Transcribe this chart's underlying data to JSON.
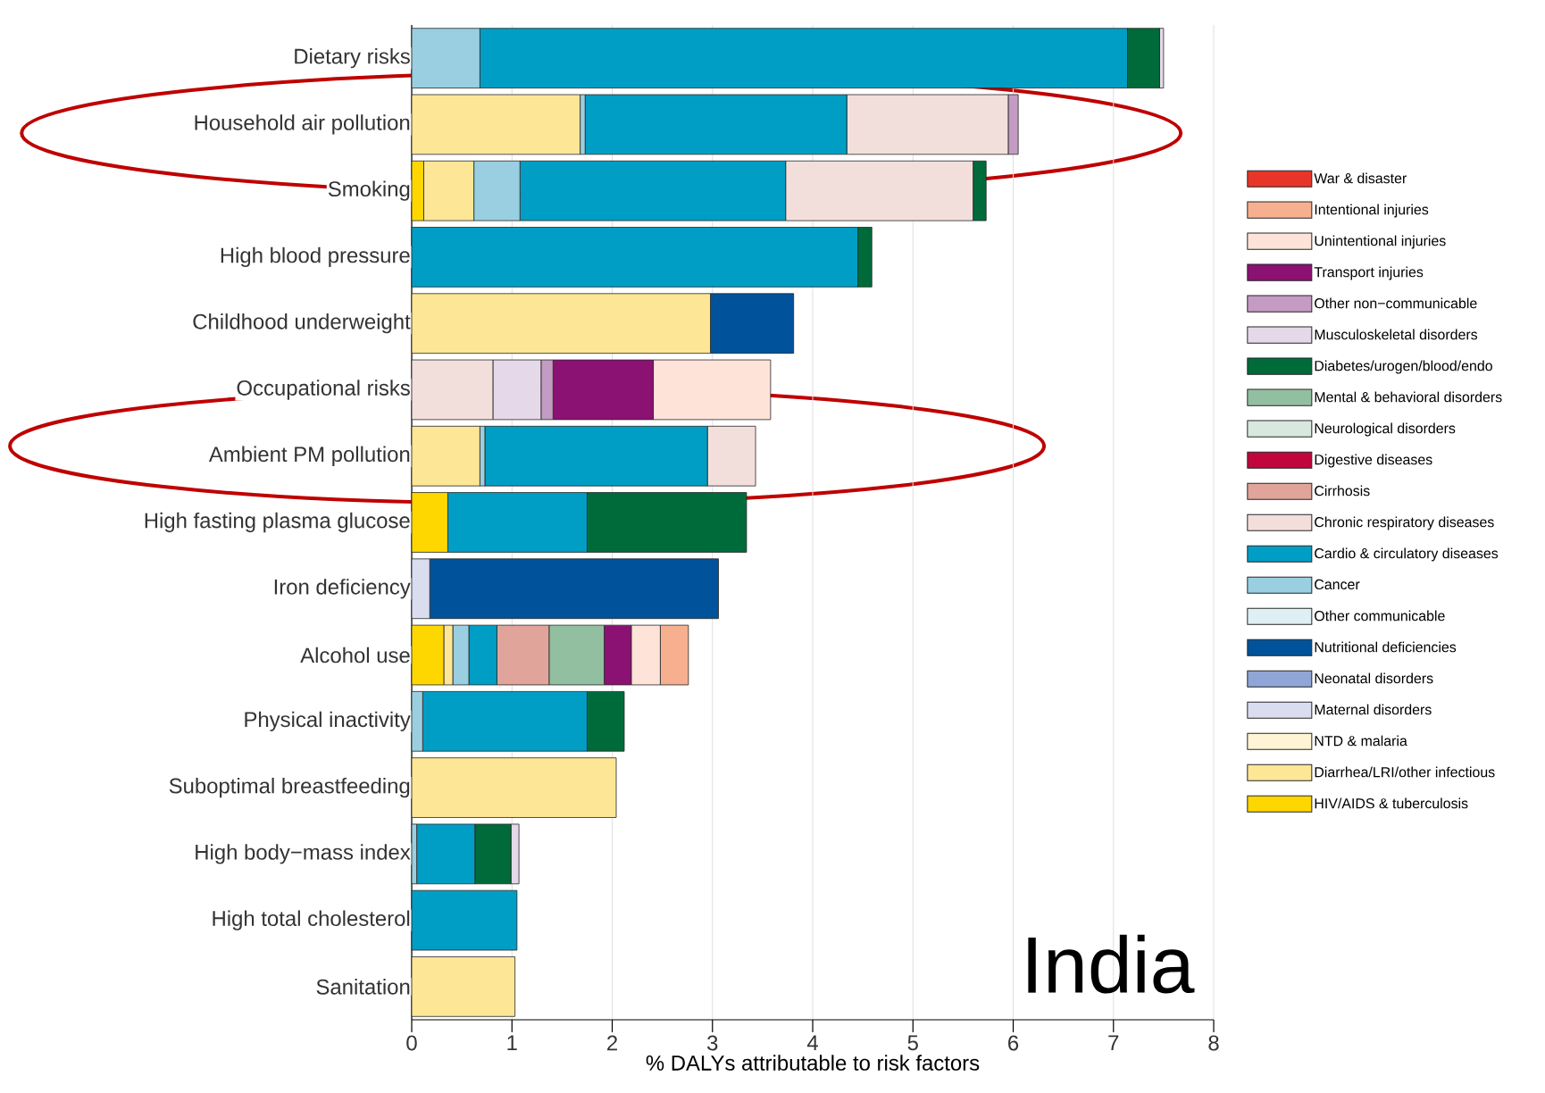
{
  "chart_data": {
    "type": "bar",
    "orientation": "horizontal",
    "stacked": true,
    "xlabel": "% DALYs attributable to risk factors",
    "categories": [
      "Dietary risks",
      "Household air pollution",
      "Smoking",
      "High blood pressure",
      "Childhood underweight",
      "Occupational risks",
      "Ambient PM pollution",
      "High fasting plasma glucose",
      "Iron deficiency",
      "Alcohol use",
      "Physical inactivity",
      "Suboptimal breastfeeding",
      "High body−mass index",
      "High total cholesterol",
      "Sanitation"
    ],
    "xlim": [
      0,
      8
    ],
    "xticks": [
      0,
      1,
      2,
      3,
      4,
      5,
      6,
      7,
      8
    ],
    "grid": "x",
    "legend": "right",
    "annotations": [
      "India"
    ],
    "series": [
      {
        "name": "HIV/AIDS & tuberculosis",
        "color": "#ffd700",
        "values": [
          0,
          0,
          0.12,
          0,
          0,
          0,
          0,
          0.36,
          0,
          0.32,
          0,
          0,
          0,
          0,
          0
        ]
      },
      {
        "name": "Diarrhea/LRI/other infectious",
        "color": "#fde695",
        "values": [
          0,
          1.68,
          0.5,
          0,
          2.98,
          0,
          0.68,
          0,
          0,
          0.09,
          0,
          2.04,
          0,
          0,
          1.03
        ]
      },
      {
        "name": "NTD & malaria",
        "color": "#fff5d4",
        "values": [
          0,
          0,
          0,
          0,
          0,
          0,
          0,
          0,
          0,
          0,
          0,
          0,
          0,
          0,
          0
        ]
      },
      {
        "name": "Maternal disorders",
        "color": "#dadcef",
        "values": [
          0,
          0,
          0,
          0,
          0,
          0,
          0,
          0,
          0.18,
          0,
          0,
          0,
          0,
          0,
          0
        ]
      },
      {
        "name": "Neonatal disorders",
        "color": "#8fa6d6",
        "values": [
          0,
          0,
          0,
          0,
          0,
          0,
          0,
          0,
          0,
          0,
          0,
          0,
          0,
          0,
          0
        ]
      },
      {
        "name": "Nutritional deficiencies",
        "color": "#00529a",
        "values": [
          0,
          0,
          0,
          0,
          0.83,
          0,
          0,
          0,
          2.88,
          0,
          0,
          0,
          0,
          0,
          0
        ]
      },
      {
        "name": "Other communicable",
        "color": "#dff0f5",
        "values": [
          0,
          0,
          0,
          0,
          0,
          0,
          0,
          0,
          0,
          0,
          0,
          0,
          0,
          0,
          0
        ]
      },
      {
        "name": "Cancer",
        "color": "#99cfe0",
        "values": [
          0.68,
          0.05,
          0.46,
          0,
          0,
          0,
          0.05,
          0,
          0,
          0.16,
          0.11,
          0,
          0.05,
          0,
          0
        ]
      },
      {
        "name": "Cardio & circulatory diseases",
        "color": "#009ec4",
        "values": [
          6.46,
          2.61,
          2.65,
          4.45,
          0,
          0,
          2.22,
          1.39,
          0,
          0.28,
          1.64,
          0,
          0.58,
          1.05,
          0
        ]
      },
      {
        "name": "Chronic respiratory diseases",
        "color": "#f2dfdb",
        "values": [
          0,
          1.61,
          1.87,
          0,
          0,
          0.81,
          0.48,
          0,
          0,
          0,
          0,
          0,
          0,
          0,
          0
        ]
      },
      {
        "name": "Cirrhosis",
        "color": "#e0a49b",
        "values": [
          0,
          0,
          0,
          0,
          0,
          0,
          0,
          0,
          0,
          0.52,
          0,
          0,
          0,
          0,
          0
        ]
      },
      {
        "name": "Digestive diseases",
        "color": "#c0063d",
        "values": [
          0,
          0,
          0,
          0,
          0,
          0,
          0,
          0,
          0,
          0,
          0,
          0,
          0,
          0,
          0
        ]
      },
      {
        "name": "Neurological disorders",
        "color": "#d8e8df",
        "values": [
          0,
          0,
          0,
          0,
          0,
          0,
          0,
          0,
          0,
          0,
          0,
          0,
          0,
          0,
          0
        ]
      },
      {
        "name": "Mental & behavioral disorders",
        "color": "#93bfa1",
        "values": [
          0,
          0,
          0,
          0,
          0,
          0,
          0,
          0,
          0,
          0.55,
          0,
          0,
          0,
          0,
          0
        ]
      },
      {
        "name": "Diabetes/urogen/blood/endo",
        "color": "#006b3a",
        "values": [
          0.32,
          0,
          0.13,
          0.14,
          0,
          0,
          0,
          1.59,
          0,
          0,
          0.37,
          0,
          0.36,
          0,
          0
        ]
      },
      {
        "name": "Musculoskeletal disorders",
        "color": "#e5d8e8",
        "values": [
          0.04,
          0,
          0,
          0,
          0,
          0.48,
          0,
          0,
          0,
          0,
          0,
          0,
          0.08,
          0,
          0
        ]
      },
      {
        "name": "Other non−communicable",
        "color": "#c49bc2",
        "values": [
          0,
          0.1,
          0,
          0,
          0,
          0.12,
          0,
          0,
          0,
          0,
          0,
          0,
          0,
          0,
          0
        ]
      },
      {
        "name": "Transport injuries",
        "color": "#8b1173",
        "values": [
          0,
          0,
          0,
          0,
          0,
          1.0,
          0,
          0,
          0,
          0.27,
          0,
          0,
          0,
          0,
          0
        ]
      },
      {
        "name": "Unintentional injuries",
        "color": "#fde3d8",
        "values": [
          0,
          0,
          0,
          0,
          0,
          1.17,
          0,
          0,
          0,
          0.29,
          0,
          0,
          0,
          0,
          0
        ]
      },
      {
        "name": "Intentional injuries",
        "color": "#f7b08f",
        "values": [
          0,
          0,
          0,
          0,
          0,
          0,
          0,
          0,
          0,
          0.28,
          0,
          0,
          0,
          0,
          0
        ]
      },
      {
        "name": "War & disaster",
        "color": "#e8352a",
        "values": [
          0,
          0,
          0,
          0,
          0,
          0,
          0,
          0,
          0,
          0,
          0,
          0,
          0,
          0,
          0
        ]
      }
    ]
  }
}
